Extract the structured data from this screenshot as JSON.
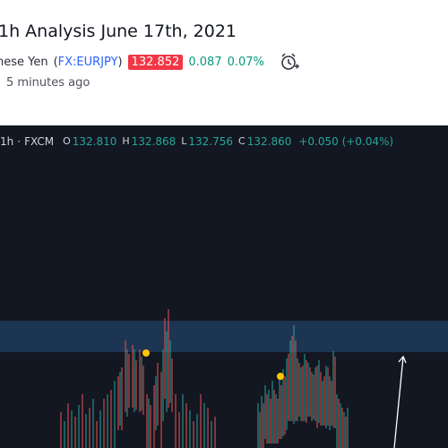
{
  "header": {
    "title": "1h Analysis June 17th, 2021",
    "symbol_name": "nese Yen",
    "ticker": "FX:EURJPY",
    "price": "132.852",
    "change": "0.087",
    "change_percent": "0.07%",
    "time": "5 minutes ago"
  },
  "chart_header": {
    "interval": "1h",
    "source": "FXCM",
    "ohlc": [
      {
        "key": "O",
        "value": "132.810"
      },
      {
        "key": "H",
        "value": "132.868"
      },
      {
        "key": "L",
        "value": "132.756"
      },
      {
        "key": "C",
        "value": "132.860"
      }
    ],
    "change": "+0.050 (+0.04%)"
  }
}
